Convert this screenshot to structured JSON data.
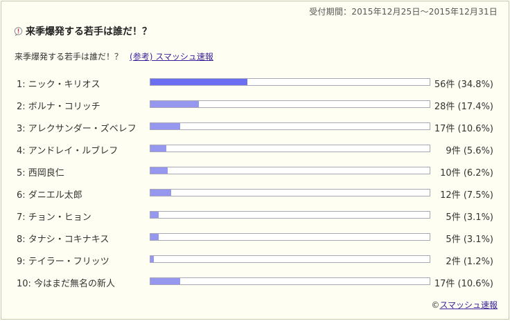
{
  "period": "受付期間：2015年12月25日～2015年12月31日",
  "title": "来季爆発する若手は誰だ！？",
  "question": "来季爆発する若手は誰だ！？",
  "ref_link": "(参考) スマッシュ速報",
  "footer": {
    "copyright": "©",
    "link": "スマッシュ速報"
  },
  "colors": {
    "bar_top": "#6b6ef0",
    "bar": "#9598ee",
    "background": "#fefef2",
    "link": "#3a1f9c"
  },
  "icons": {
    "title_icon": "exclamation-bubble-icon"
  },
  "chart_data": {
    "type": "bar",
    "categories": [
      "1: ニック・キリオス",
      "2: ボルナ・コリッチ",
      "3: アレクサンダー・ズベレフ",
      "4: アンドレイ・ルブレフ",
      "5: 西岡良仁",
      "6: ダニエル太郎",
      "7: チョン・ヒョン",
      "8: タナシ・コキナキス",
      "9: テイラー・フリッツ",
      "10: 今はまだ無名の新人"
    ],
    "values": [
      56,
      28,
      17,
      9,
      10,
      12,
      5,
      5,
      2,
      17
    ],
    "percents": [
      34.8,
      17.4,
      10.6,
      5.6,
      6.2,
      7.5,
      3.1,
      3.1,
      1.2,
      10.6
    ],
    "value_labels": [
      "56件 (34.8%)",
      "28件 (17.4%)",
      "17件 (10.6%)",
      "9件 (5.6%)",
      "10件 (6.2%)",
      "12件 (7.5%)",
      "5件 (3.1%)",
      "5件 (3.1%)",
      "2件 (1.2%)",
      "17件 (10.6%)"
    ],
    "xlim": [
      0,
      100
    ]
  }
}
